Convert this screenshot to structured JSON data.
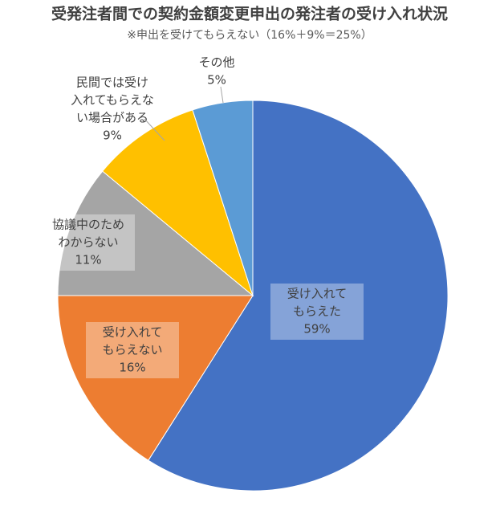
{
  "chart_data": {
    "type": "pie",
    "title": "受発注者間での契約金額変更申出の発注者の受け入れ状況",
    "subtitle": "※申出を受けてもらえない（16%＋9%＝25%）",
    "categories": [
      [
        "受け入れて",
        "もらえた"
      ],
      [
        "受け入れて",
        "もらえない"
      ],
      [
        "協議中のため",
        "わからない"
      ],
      [
        "民間では受け",
        "入れてもらえな",
        "い場合がある"
      ],
      [
        "その他"
      ]
    ],
    "values": [
      59,
      16,
      11,
      9,
      5
    ],
    "value_labels": [
      "59%",
      "16%",
      "11%",
      "9%",
      "5%"
    ],
    "colors": [
      "#4472c4",
      "#ed7d31",
      "#a5a5a5",
      "#ffc000",
      "#5b9bd5"
    ]
  }
}
